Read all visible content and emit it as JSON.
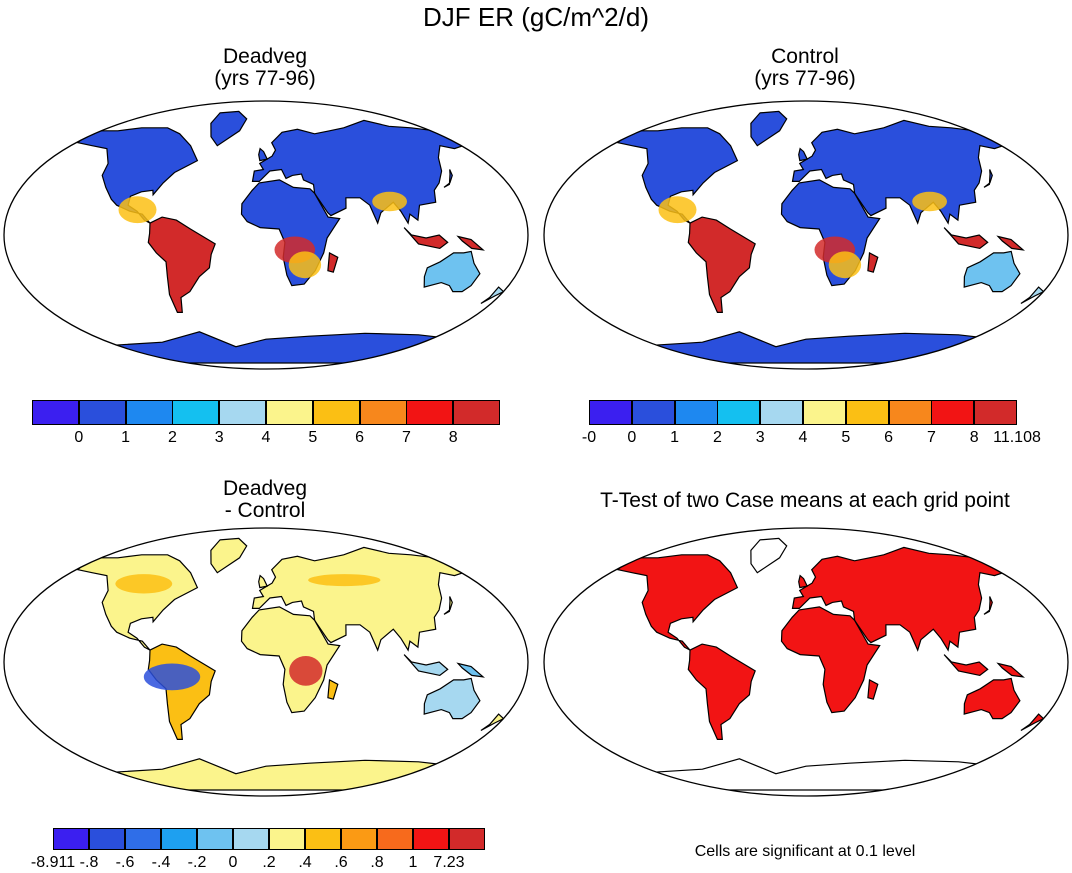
{
  "main_title": "DJF ER (gC/m^2/d)",
  "panels": [
    {
      "id": "deadveg",
      "title_line1": "Deadveg",
      "title_line2": "(yrs 77-96)",
      "kind": "field"
    },
    {
      "id": "control",
      "title_line1": "Control",
      "title_line2": "(yrs 77-96)",
      "kind": "field"
    },
    {
      "id": "diff",
      "title_line1": "Deadveg",
      "title_line2": "- Control",
      "kind": "diff"
    },
    {
      "id": "ttest",
      "title_line1": "T-Test of two Case means at each grid point",
      "title_line2": "",
      "kind": "mask"
    }
  ],
  "colorbars": {
    "deadveg": {
      "colors": [
        "#3b1ff0",
        "#2a4fdc",
        "#1e88f0",
        "#14c0f0",
        "#a6d8f0",
        "#fbf48c",
        "#fbbf14",
        "#f7871c",
        "#f21414",
        "#d22a2a"
      ],
      "labels": [
        "0",
        "1",
        "2",
        "3",
        "4",
        "5",
        "6",
        "7",
        "8"
      ]
    },
    "control": {
      "colors": [
        "#3b1ff0",
        "#2a4fdc",
        "#1e88f0",
        "#14c0f0",
        "#a6d8f0",
        "#fbf48c",
        "#fbbf14",
        "#f7871c",
        "#f21414",
        "#d22a2a"
      ],
      "labels": [
        "-0",
        "0",
        "1",
        "2",
        "3",
        "4",
        "5",
        "6",
        "7",
        "8",
        "11.108"
      ]
    },
    "diff": {
      "colors": [
        "#3b1ff0",
        "#2a4fdc",
        "#2f6ee8",
        "#1ea0f0",
        "#6ec2f0",
        "#a6d8f0",
        "#fbf48c",
        "#fbbf14",
        "#fb9a14",
        "#f76a1c",
        "#f21414",
        "#d22a2a"
      ],
      "labels": [
        "-8.911",
        "-.8",
        "-.6",
        "-.4",
        "-.2",
        "0",
        ".2",
        ".4",
        ".6",
        ".8",
        "1",
        "7.23"
      ]
    }
  },
  "note": "Cells are significant at 0.1 level",
  "colors": {
    "land_outline": "#000000",
    "mask": "#f21414"
  },
  "chart_data": [
    {
      "type": "heatmap",
      "title": "Deadveg (yrs 77-96)",
      "colorbar_levels": [
        0,
        1,
        2,
        3,
        4,
        5,
        6,
        7,
        8
      ]
    },
    {
      "type": "heatmap",
      "title": "Control (yrs 77-96)",
      "colorbar_levels": [
        0,
        0,
        1,
        2,
        3,
        4,
        5,
        6,
        7,
        8,
        11.108
      ]
    },
    {
      "type": "heatmap",
      "title": "Deadveg - Control",
      "colorbar_levels": [
        -8.911,
        -0.8,
        -0.6,
        -0.4,
        -0.2,
        0,
        0.2,
        0.4,
        0.6,
        0.8,
        1,
        7.23
      ]
    },
    {
      "type": "heatmap",
      "title": "T-Test of two Case means at each grid point",
      "annotation": "Cells are significant at 0.1 level"
    }
  ]
}
